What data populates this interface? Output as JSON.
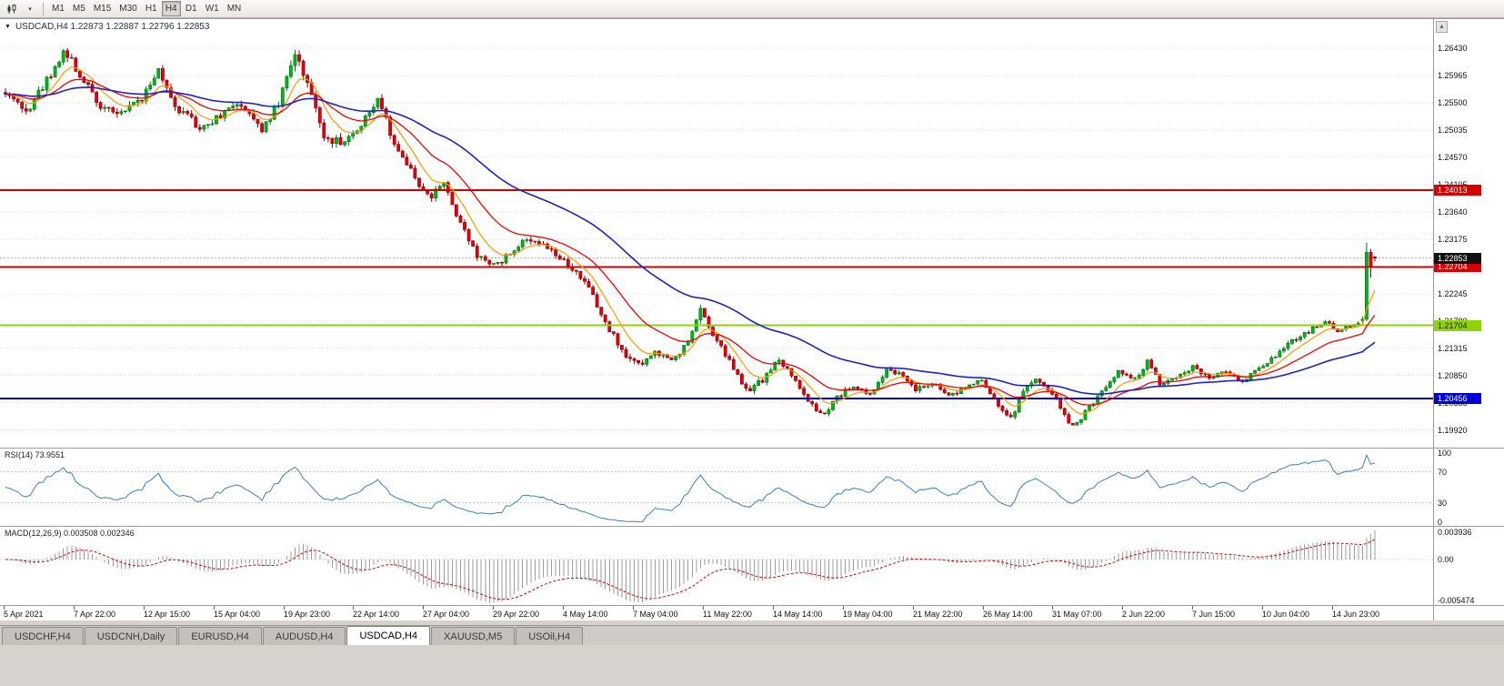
{
  "toolbar": {
    "timeframes": [
      "M1",
      "M5",
      "M15",
      "M30",
      "H1",
      "H4",
      "D1",
      "W1",
      "MN"
    ],
    "active_timeframe": "H4",
    "icons": {
      "chart_menu": "▼",
      "dropdown": "▾",
      "scroll_up": "▲"
    }
  },
  "chart": {
    "title_line": "USDCAD,H4 1.22873 1.22887 1.22796 1.22853"
  },
  "chart_data": {
    "type": "candlestick",
    "symbol": "USDCAD",
    "timeframe": "H4",
    "last_candle": {
      "open": 1.22873,
      "high": 1.22887,
      "low": 1.22796,
      "close": 1.22853
    },
    "candle_count": 332,
    "seed": 1337,
    "price_axis": {
      "min": 1.1962,
      "max": 1.2693,
      "labels": [
        1.2643,
        1.25965,
        1.255,
        1.25035,
        1.2457,
        1.24105,
        1.2364,
        1.23175,
        1.2271,
        1.22245,
        1.2178,
        1.21315,
        1.2085,
        1.20385,
        1.1992
      ]
    },
    "time_labels": [
      "5 Apr 2021",
      "7 Apr 22:00",
      "12 Apr 15:00",
      "15 Apr 04:00",
      "19 Apr 23:00",
      "22 Apr 14:00",
      "27 Apr 04:00",
      "29 Apr 22:00",
      "4 May 14:00",
      "7 May 04:00",
      "11 May 22:00",
      "14 May 14:00",
      "19 May 04:00",
      "21 May 22:00",
      "26 May 14:00",
      "31 May 07:00",
      "2 Jun 22:00",
      "7 Jun 15:00",
      "10 Jun 04:00",
      "14 Jun 23:00"
    ],
    "hlines": [
      {
        "price": 1.24013,
        "label": "1.24013",
        "color": "#D60000",
        "text_color": "#FFFFFF"
      },
      {
        "price": 1.22704,
        "label": "1.22704",
        "color": "#D60000",
        "text_color": "#FFFFFF"
      },
      {
        "price": 1.21704,
        "label": "1.21704",
        "color": "#8FD400",
        "text_color": "#1A1A1A"
      },
      {
        "price": 1.20456,
        "label": "1.20456",
        "color": "#0000D4",
        "text_color": "#FFFFFF"
      }
    ],
    "current_price": {
      "value": 1.22853,
      "label": "1.22853",
      "badge_color": "#111111",
      "text_color": "#FFFFFF"
    },
    "colors": {
      "bull_fill": "#00B61E",
      "bull_stroke": "#00720F",
      "bear_fill": "#E00010",
      "bear_stroke": "#8E0000",
      "grid": "#DCDCDC",
      "current_line": "#B4B4B4"
    },
    "moving_averages": [
      {
        "period": 8,
        "color": "#FF9900",
        "width": 1.2
      },
      {
        "period": 21,
        "color": "#F40000",
        "width": 1.3
      },
      {
        "period": 55,
        "color": "#1E22C8",
        "width": 1.6
      }
    ],
    "price_anchors": [
      [
        0,
        1.257,
        0.0016
      ],
      [
        5,
        1.2535,
        0.0016
      ],
      [
        10,
        1.259,
        0.0017
      ],
      [
        14,
        1.2638,
        0.0017
      ],
      [
        18,
        1.26,
        0.0016
      ],
      [
        23,
        1.2545,
        0.0016
      ],
      [
        27,
        1.2528,
        0.0014
      ],
      [
        33,
        1.256,
        0.0015
      ],
      [
        37,
        1.2605,
        0.0016
      ],
      [
        41,
        1.2545,
        0.0015
      ],
      [
        47,
        1.2508,
        0.0014
      ],
      [
        52,
        1.2528,
        0.0013
      ],
      [
        57,
        1.255,
        0.0014
      ],
      [
        62,
        1.2505,
        0.0014
      ],
      [
        66,
        1.2548,
        0.0015
      ],
      [
        70,
        1.2635,
        0.0019
      ],
      [
        73,
        1.2585,
        0.0017
      ],
      [
        77,
        1.2495,
        0.0016
      ],
      [
        81,
        1.248,
        0.0014
      ],
      [
        85,
        1.2505,
        0.0013
      ],
      [
        90,
        1.2558,
        0.0014
      ],
      [
        94,
        1.248,
        0.0014
      ],
      [
        99,
        1.242,
        0.0013
      ],
      [
        103,
        1.2388,
        0.0013
      ],
      [
        106,
        1.2418,
        0.0012
      ],
      [
        110,
        1.234,
        0.0013
      ],
      [
        114,
        1.2292,
        0.0013
      ],
      [
        118,
        1.2272,
        0.0012
      ],
      [
        122,
        1.2292,
        0.0011
      ],
      [
        126,
        1.2322,
        0.0011
      ],
      [
        130,
        1.2308,
        0.001
      ],
      [
        134,
        1.2288,
        0.001
      ],
      [
        138,
        1.2258,
        0.0011
      ],
      [
        141,
        1.2232,
        0.0011
      ],
      [
        145,
        1.2178,
        0.0012
      ],
      [
        149,
        1.2128,
        0.0012
      ],
      [
        153,
        1.2102,
        0.0011
      ],
      [
        157,
        1.2126,
        0.001
      ],
      [
        161,
        1.2108,
        0.001
      ],
      [
        165,
        1.214,
        0.0011
      ],
      [
        168,
        1.2196,
        0.0013
      ],
      [
        171,
        1.2155,
        0.0011
      ],
      [
        175,
        1.2108,
        0.001
      ],
      [
        179,
        1.2058,
        0.0011
      ],
      [
        183,
        1.2078,
        0.001
      ],
      [
        187,
        1.2112,
        0.001
      ],
      [
        191,
        1.2078,
        0.0009
      ],
      [
        195,
        1.2032,
        0.001
      ],
      [
        198,
        1.2016,
        0.0009
      ],
      [
        201,
        1.2048,
        0.0009
      ],
      [
        205,
        1.2068,
        0.0008
      ],
      [
        209,
        1.2052,
        0.0008
      ],
      [
        213,
        1.2098,
        0.0009
      ],
      [
        216,
        1.2088,
        0.0008
      ],
      [
        220,
        1.206,
        0.0008
      ],
      [
        224,
        1.2072,
        0.0008
      ],
      [
        228,
        1.205,
        0.0008
      ],
      [
        232,
        1.2066,
        0.0008
      ],
      [
        236,
        1.2076,
        0.0008
      ],
      [
        240,
        1.203,
        0.0009
      ],
      [
        243,
        1.201,
        0.0009
      ],
      [
        246,
        1.2058,
        0.0009
      ],
      [
        249,
        1.2076,
        0.0008
      ],
      [
        252,
        1.2062,
        0.0008
      ],
      [
        255,
        1.203,
        0.0009
      ],
      [
        258,
        1.1996,
        0.0009
      ],
      [
        261,
        1.2022,
        0.0008
      ],
      [
        265,
        1.2058,
        0.0008
      ],
      [
        269,
        1.2092,
        0.0008
      ],
      [
        273,
        1.2078,
        0.0007
      ],
      [
        276,
        1.2108,
        0.0008
      ],
      [
        279,
        1.2072,
        0.0008
      ],
      [
        283,
        1.2082,
        0.0007
      ],
      [
        287,
        1.21,
        0.0007
      ],
      [
        291,
        1.208,
        0.0007
      ],
      [
        295,
        1.2092,
        0.0007
      ],
      [
        299,
        1.2076,
        0.0007
      ],
      [
        303,
        1.2096,
        0.0007
      ],
      [
        307,
        1.212,
        0.0008
      ],
      [
        311,
        1.2146,
        0.0008
      ],
      [
        315,
        1.216,
        0.0008
      ],
      [
        319,
        1.2178,
        0.0008
      ],
      [
        322,
        1.2163,
        0.0007
      ],
      [
        325,
        1.2172,
        0.0007
      ],
      [
        328,
        1.218,
        0.0007
      ]
    ],
    "final_candles": [
      {
        "o": 1.2179,
        "h": 1.2186,
        "l": 1.2172,
        "c": 1.2181
      },
      {
        "o": 1.2181,
        "h": 1.2312,
        "l": 1.2178,
        "c": 1.2295
      },
      {
        "o": 1.2295,
        "h": 1.2301,
        "l": 1.2252,
        "c": 1.2271
      },
      {
        "o": 1.22873,
        "h": 1.22887,
        "l": 1.22796,
        "c": 1.22853
      }
    ],
    "rsi": {
      "title": "RSI(14) 73.9551",
      "period": 14,
      "value": 73.9551,
      "levels": [
        100,
        70,
        30,
        0
      ],
      "range": [
        0,
        100
      ],
      "line_color": "#3A7EC6",
      "level_color": "#C8C8C8"
    },
    "macd": {
      "title": "MACD(12,26,9) 0.003508 0.002346",
      "fast": 12,
      "slow": 26,
      "signal": 9,
      "macd_value": 0.003508,
      "signal_value": 0.002346,
      "range": [
        -0.005474,
        0.003936
      ],
      "axis_labels": [
        "0.003936",
        "0.00",
        "-0.005474"
      ],
      "hist_color": "#9C9C9C",
      "signal_color": "#E00000"
    }
  },
  "tabs": {
    "items": [
      {
        "label": "USDCHF,H4",
        "active": false
      },
      {
        "label": "USDCNH,Daily",
        "active": false
      },
      {
        "label": "EURUSD,H4",
        "active": false
      },
      {
        "label": "AUDUSD,H4",
        "active": false
      },
      {
        "label": "USDCAD,H4",
        "active": true
      },
      {
        "label": "XAUUSD,M5",
        "active": false
      },
      {
        "label": "USOil,H4",
        "active": false
      }
    ]
  }
}
